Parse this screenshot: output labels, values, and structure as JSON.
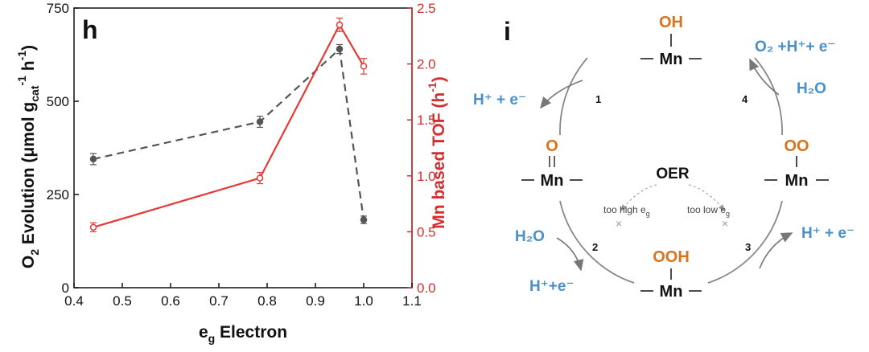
{
  "chart_data": {
    "type": "line",
    "panel_label": "h",
    "x": [
      0.44,
      0.785,
      0.95,
      1.0
    ],
    "xlabel": "e",
    "xlabel_sub": "g",
    "xlabel_rest": " Electron",
    "xlim": [
      0.4,
      1.1
    ],
    "xticks": [
      "0.4",
      "0.5",
      "0.6",
      "0.7",
      "0.8",
      "0.9",
      "1.0",
      "1.1"
    ],
    "ylabel_left": "O₂ Evolution (μmol g_cat⁻¹ h⁻¹)",
    "ylabel_left_main": "O",
    "ylabel_left_sub": "2",
    "ylabel_left_mid": " Evolution (μmol g",
    "ylabel_left_sub2": "cat",
    "ylabel_left_sup1": "-1",
    "ylabel_left_end": " h",
    "ylabel_left_sup2": "-1",
    "ylabel_left_close": ")",
    "ylim_left": [
      0,
      750
    ],
    "yticks_left": [
      "0",
      "250",
      "500",
      "750"
    ],
    "ylabel_right_main": "Mn based TOF (h",
    "ylabel_right_sup": "-1",
    "ylabel_right_close": ")",
    "ylim_right": [
      0,
      2.5
    ],
    "yticks_right": [
      "0.0",
      "0.5",
      "1.0",
      "1.5",
      "2.0",
      "2.5"
    ],
    "series": [
      {
        "axis": "left",
        "style": "dashed",
        "color": "#555555",
        "values": [
          345,
          445,
          640,
          182
        ],
        "errors": [
          15,
          15,
          12,
          10
        ]
      },
      {
        "axis": "right",
        "style": "solid",
        "color": "#e53935",
        "values": [
          0.54,
          0.98,
          2.35,
          1.98
        ],
        "errors": [
          0.04,
          0.05,
          0.06,
          0.07
        ]
      }
    ]
  },
  "diagram": {
    "panel_label": "i",
    "center": "OER",
    "mn": "Mn",
    "ligand_top": "OH",
    "ligand_left": "O",
    "ligand_right": "OO",
    "ligand_bottom": "OOH",
    "step_labels": [
      "1",
      "4",
      "2",
      "3"
    ],
    "too_high": "too high e",
    "too_low": "too low e",
    "eg_sub": "g",
    "species": {
      "top_left_out": "H⁺ + e⁻",
      "top_right_out": "O₂ +H⁺+ e⁻",
      "top_right_in": "H₂O",
      "bottom_left_in": "H₂O",
      "bottom_left_out": "H⁺+e⁻",
      "bottom_right_out": "H⁺ + e⁻"
    }
  },
  "colors": {
    "ligand": "#d9731c",
    "species": "#4a90c8",
    "tof": "#e53935",
    "evolution": "#555555",
    "cycle": "#888888"
  }
}
